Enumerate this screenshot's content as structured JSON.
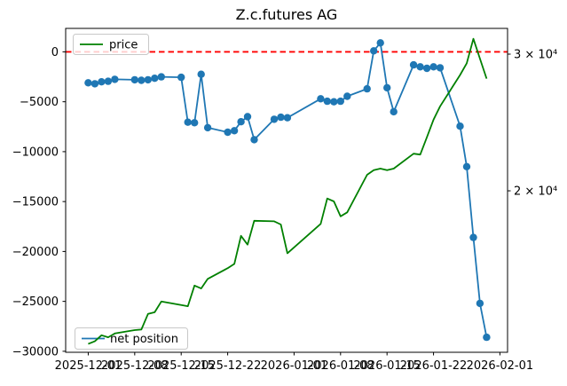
{
  "title": "Z.c.futures AG",
  "legends": {
    "price": "price",
    "net_position": "net position"
  },
  "colors": {
    "net_position": "#1f77b4",
    "price": "#008000",
    "zero_line": "#ff0000",
    "spine": "#000000",
    "legend_border": "#c8c8c8"
  },
  "chart_data": {
    "type": "line",
    "title": "Z.c.futures AG",
    "x_axis": {
      "origin_date": "2025-12-01",
      "xlim_days": [
        -3.4,
        63.15
      ],
      "tick_dates": [
        "2025-12-01",
        "2025-12-08",
        "2025-12-15",
        "2025-12-22",
        "2026-01-01",
        "2026-01-08",
        "2026-01-15",
        "2026-01-22",
        "2026-02-01"
      ],
      "tick_labels": [
        "2025-12-01",
        "2025-12-08",
        "2025-12-15",
        "2025-12-22",
        "2026-01-01",
        "2026-01-08",
        "2026-01-15",
        "2026-01-22",
        "2026-02-01"
      ]
    },
    "left_axis": {
      "ylim": [
        -30100,
        2350
      ],
      "tick_values": [
        0,
        -5000,
        -10000,
        -15000,
        -20000,
        -25000,
        -30000
      ],
      "tick_labels": [
        "0",
        "−5000",
        "−10000",
        "−15000",
        "−20000",
        "−25000",
        "−30000"
      ]
    },
    "right_axis": {
      "scale": "log",
      "ylim": [
        12388,
        32380
      ],
      "tick_values": [
        30000,
        20000
      ],
      "tick_labels": [
        "3 × 10⁴",
        "2 × 10⁴"
      ]
    },
    "zero_line": {
      "value": 0,
      "color": "#ff0000",
      "style": "dashed"
    },
    "grid": false,
    "series": [
      {
        "name": "net position",
        "axis": "left",
        "color": "#1f77b4",
        "marker": "circle",
        "dates": [
          "2025-12-01",
          "2025-12-02",
          "2025-12-03",
          "2025-12-04",
          "2025-12-05",
          "2025-12-08",
          "2025-12-09",
          "2025-12-10",
          "2025-12-11",
          "2025-12-12",
          "2025-12-15",
          "2025-12-16",
          "2025-12-17",
          "2025-12-18",
          "2025-12-19",
          "2025-12-22",
          "2025-12-23",
          "2025-12-24",
          "2025-12-25",
          "2025-12-26",
          "2025-12-29",
          "2025-12-30",
          "2025-12-31",
          "2026-01-05",
          "2026-01-06",
          "2026-01-07",
          "2026-01-08",
          "2026-01-09",
          "2026-01-12",
          "2026-01-13",
          "2026-01-14",
          "2026-01-15",
          "2026-01-16",
          "2026-01-19",
          "2026-01-20",
          "2026-01-21",
          "2026-01-22",
          "2026-01-23",
          "2026-01-26",
          "2026-01-27",
          "2026-01-28",
          "2026-01-29",
          "2026-01-30"
        ],
        "values": [
          -3100,
          -3200,
          -3000,
          -2950,
          -2750,
          -2800,
          -2850,
          -2800,
          -2650,
          -2500,
          -2550,
          -7050,
          -7100,
          -2250,
          -7600,
          -8050,
          -7900,
          -7000,
          -6500,
          -8800,
          -6750,
          -6550,
          -6600,
          -4700,
          -4950,
          -5000,
          -4950,
          -4450,
          -3700,
          100,
          900,
          -3600,
          -6000,
          -1300,
          -1500,
          -1650,
          -1500,
          -1600,
          -7450,
          -11500,
          -18600,
          -25200,
          -28600
        ]
      },
      {
        "name": "price",
        "axis": "right",
        "color": "#008000",
        "marker": null,
        "dates": [
          "2025-12-01",
          "2025-12-02",
          "2025-12-03",
          "2025-12-04",
          "2025-12-05",
          "2025-12-08",
          "2025-12-09",
          "2025-12-10",
          "2025-12-11",
          "2025-12-12",
          "2025-12-15",
          "2025-12-16",
          "2025-12-17",
          "2025-12-18",
          "2025-12-19",
          "2025-12-22",
          "2025-12-23",
          "2025-12-24",
          "2025-12-25",
          "2025-12-26",
          "2025-12-29",
          "2025-12-30",
          "2025-12-31",
          "2026-01-05",
          "2026-01-06",
          "2026-01-07",
          "2026-01-08",
          "2026-01-09",
          "2026-01-12",
          "2026-01-13",
          "2026-01-14",
          "2026-01-15",
          "2026-01-16",
          "2026-01-19",
          "2026-01-20",
          "2026-01-21",
          "2026-01-22",
          "2026-01-23",
          "2026-01-26",
          "2026-01-27",
          "2026-01-28",
          "2026-01-29",
          "2026-01-30"
        ],
        "values": [
          12700,
          12800,
          13030,
          12950,
          13100,
          13230,
          13250,
          13880,
          13950,
          14400,
          14250,
          14200,
          15100,
          14970,
          15400,
          15900,
          16100,
          17500,
          17050,
          18300,
          18270,
          18100,
          16620,
          18130,
          19550,
          19380,
          18540,
          18760,
          20970,
          21260,
          21360,
          21260,
          21360,
          22330,
          22270,
          23440,
          24700,
          25700,
          28200,
          29200,
          31400,
          29600,
          27900
        ]
      }
    ]
  }
}
